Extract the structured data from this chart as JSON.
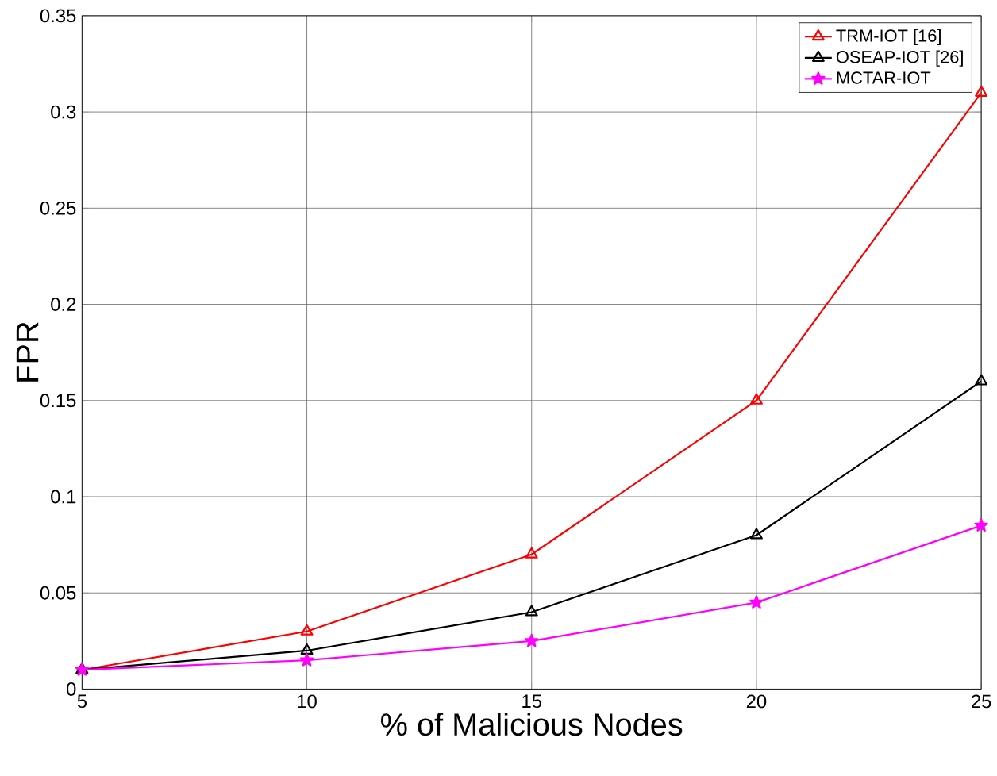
{
  "chart_data": {
    "type": "line",
    "xlabel": "% of Malicious Nodes",
    "ylabel": "FPR",
    "x": [
      5,
      10,
      15,
      20,
      25
    ],
    "series": [
      {
        "name": "TRM-IOT [16]",
        "color": "#ff0000",
        "marker": "triangle",
        "values": [
          0.01,
          0.03,
          0.07,
          0.15,
          0.31
        ]
      },
      {
        "name": "OSEAP-IOT [26]",
        "color": "#000000",
        "marker": "triangle",
        "values": [
          0.01,
          0.02,
          0.04,
          0.08,
          0.16
        ]
      },
      {
        "name": "MCTAR-IOT",
        "color": "#ff00ff",
        "marker": "star",
        "values": [
          0.01,
          0.015,
          0.025,
          0.045,
          0.085
        ]
      }
    ],
    "xlim": [
      5,
      25
    ],
    "ylim": [
      0,
      0.35
    ],
    "xticks": [
      5,
      10,
      15,
      20,
      25
    ],
    "yticks": [
      0,
      0.05,
      0.1,
      0.15,
      0.2,
      0.25,
      0.3,
      0.35
    ],
    "grid": true,
    "legend": "top right",
    "line_style": "solid"
  }
}
